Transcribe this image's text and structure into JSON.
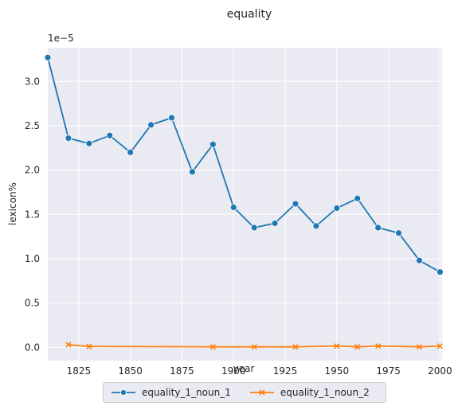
{
  "chart_data": {
    "type": "line",
    "title": "equality",
    "xlabel": "year",
    "ylabel": "lexicon%",
    "y_scale_note": "1e−5",
    "xlim": [
      1810,
      2001
    ],
    "ylim": [
      -0.15,
      3.38
    ],
    "x_ticks": [
      1825,
      1850,
      1875,
      1900,
      1925,
      1950,
      1975,
      2000
    ],
    "y_ticks": [
      0.0,
      0.5,
      1.0,
      1.5,
      2.0,
      2.5,
      3.0
    ],
    "y_tick_labels": [
      "0.0",
      "0.5",
      "1.0",
      "1.5",
      "2.0",
      "2.5",
      "3.0"
    ],
    "grid": true,
    "legend_position": "bottom-center",
    "series": [
      {
        "name": "equality_1_noun_1",
        "color": "#1f77b4",
        "marker": "circle",
        "x": [
          1810,
          1820,
          1830,
          1840,
          1850,
          1860,
          1870,
          1880,
          1890,
          1900,
          1910,
          1920,
          1930,
          1940,
          1950,
          1960,
          1970,
          1980,
          1990,
          2000
        ],
        "y": [
          3.27,
          2.36,
          2.3,
          2.39,
          2.2,
          2.51,
          2.59,
          1.98,
          2.29,
          1.58,
          1.35,
          1.4,
          1.62,
          1.37,
          1.57,
          1.68,
          1.35,
          1.29,
          0.98,
          0.85
        ]
      },
      {
        "name": "equality_1_noun_2",
        "color": "#ff7f0e",
        "marker": "x",
        "x": [
          1820,
          1830,
          1890,
          1910,
          1930,
          1950,
          1960,
          1970,
          1990,
          2000
        ],
        "y": [
          0.03,
          0.01,
          0.005,
          0.005,
          0.005,
          0.015,
          0.005,
          0.015,
          0.005,
          0.015
        ]
      }
    ]
  }
}
